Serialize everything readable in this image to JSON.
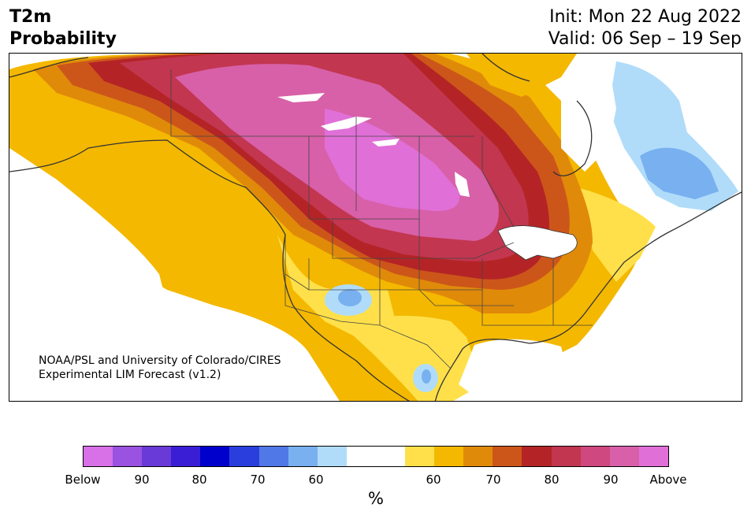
{
  "title": {
    "line1": "T2m",
    "line2": "Probability",
    "init": "Init: Mon 22 Aug 2022",
    "valid": "Valid: 06 Sep – 19 Sep"
  },
  "credit": {
    "line1": "NOAA/PSL and University of Colorado/CIRES",
    "line2": "Experimental LIM Forecast (v1.2)"
  },
  "colorbar": {
    "colors": [
      "#d870e8",
      "#9a52e0",
      "#6a3ad8",
      "#3a1ed6",
      "#0000cc",
      "#2a3ede",
      "#5078e6",
      "#78b0f0",
      "#b0dcfa",
      "#ffffff",
      "#ffffff",
      "#ffe04a",
      "#f4b800",
      "#e08a0a",
      "#cc561a",
      "#b42426",
      "#c23650",
      "#d04880",
      "#d860a8",
      "#e070d8"
    ],
    "tick_labels": [
      "Below",
      "90",
      "80",
      "70",
      "60",
      "60",
      "70",
      "80",
      "90",
      "Above"
    ],
    "unit_label": "%"
  },
  "map": {
    "region": "North America",
    "categories": {
      "above_max": "#e070d8",
      "above_90": "#d860a8",
      "above_80": "#c23650",
      "above_70": "#b42426",
      "above_65": "#cc561a",
      "above_60": "#e08a0a",
      "above_55": "#f4b800",
      "above_50": "#ffe04a",
      "below_50": "#b0dcfa",
      "below_60": "#78b0f0"
    }
  }
}
